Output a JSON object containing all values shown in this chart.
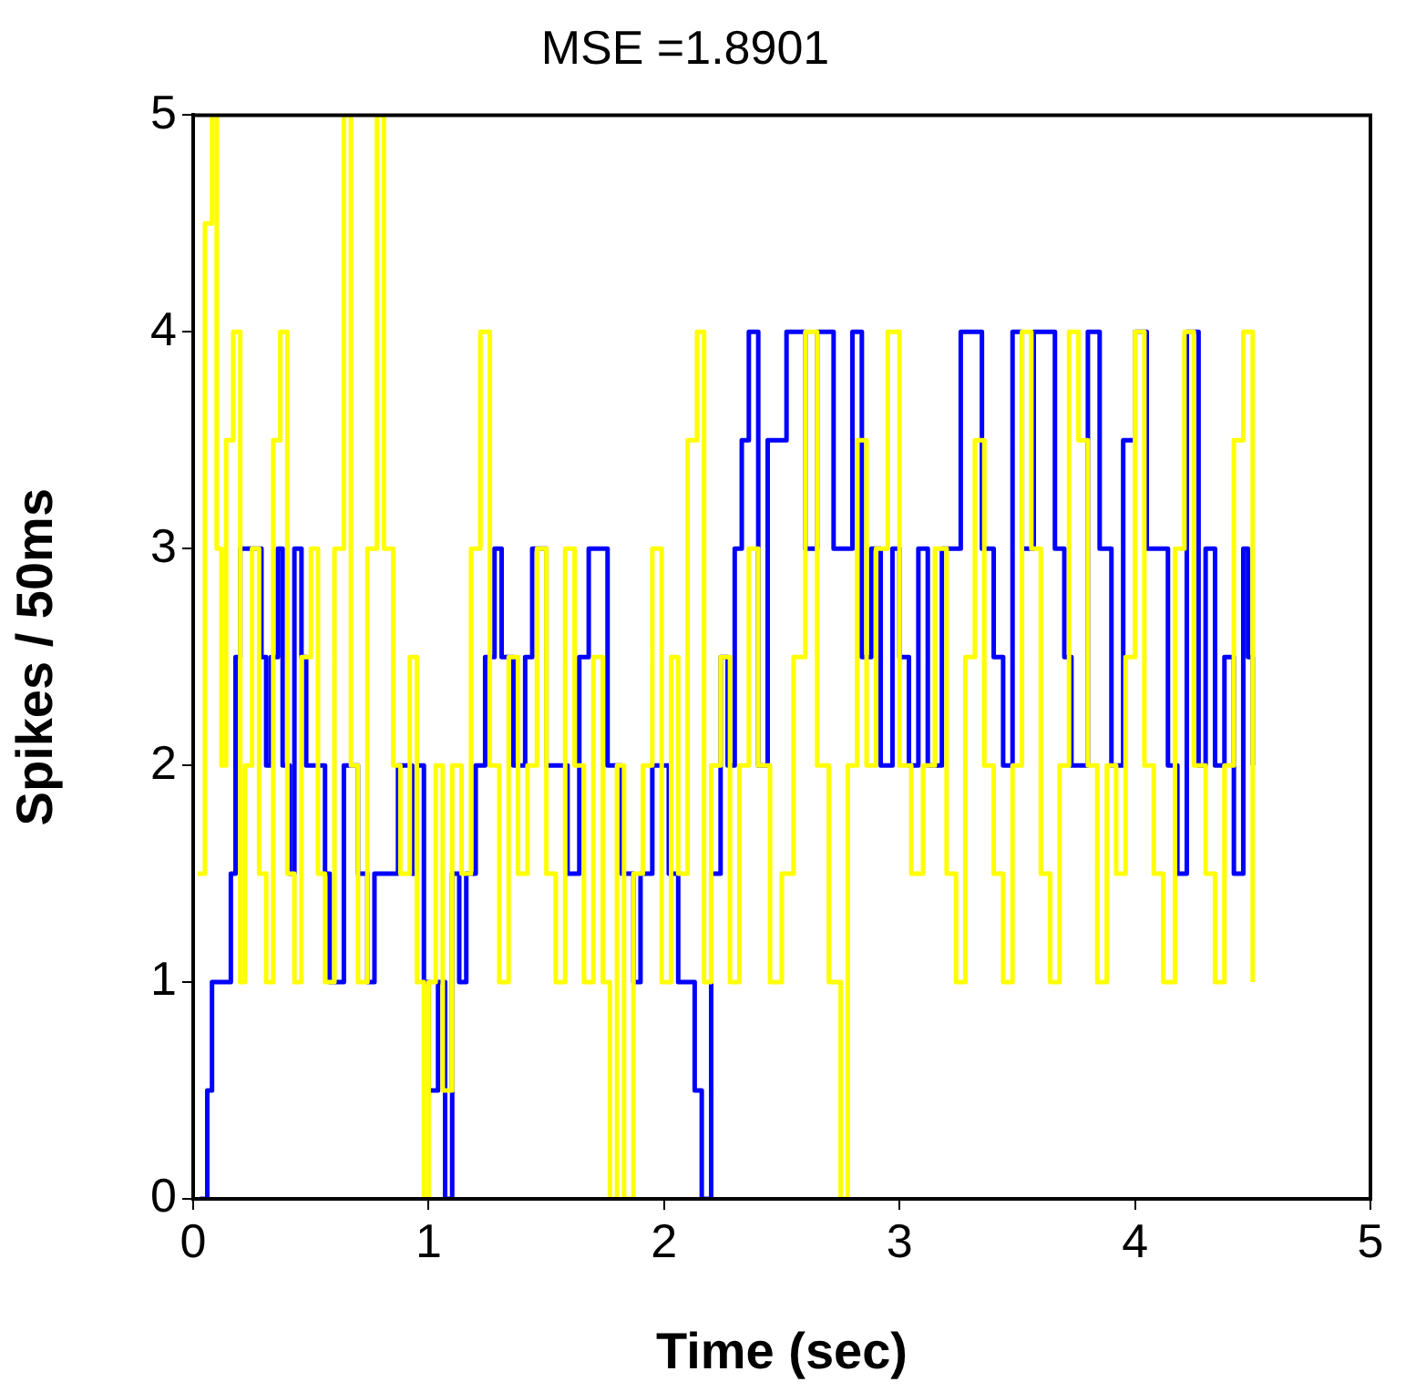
{
  "chart_data": {
    "type": "step",
    "title": "MSE =1.8901",
    "xlabel": "Time (sec)",
    "ylabel": "Spikes / 50ms",
    "xlim": [
      0,
      5
    ],
    "xticks": [
      0,
      1,
      2,
      3,
      4,
      5
    ],
    "ylim": [
      0,
      5
    ],
    "yticks": [
      0,
      1,
      2,
      3,
      4,
      5
    ],
    "grid": false,
    "legend": false,
    "series": [
      {
        "color": "#ffff00",
        "x": [
          0.02,
          0.05,
          0.08,
          0.1,
          0.12,
          0.14,
          0.17,
          0.2,
          0.22,
          0.25,
          0.28,
          0.31,
          0.34,
          0.37,
          0.4,
          0.43,
          0.46,
          0.5,
          0.53,
          0.56,
          0.6,
          0.64,
          0.67,
          0.7,
          0.74,
          0.78,
          0.81,
          0.85,
          0.88,
          0.92,
          0.95,
          0.98,
          1.0,
          1.03,
          1.06,
          1.1,
          1.14,
          1.18,
          1.22,
          1.26,
          1.3,
          1.34,
          1.38,
          1.42,
          1.46,
          1.5,
          1.54,
          1.58,
          1.62,
          1.66,
          1.7,
          1.74,
          1.77,
          1.8,
          1.83,
          1.87,
          1.91,
          1.95,
          1.99,
          2.03,
          2.06,
          2.1,
          2.14,
          2.17,
          2.2,
          2.24,
          2.28,
          2.32,
          2.36,
          2.4,
          2.45,
          2.5,
          2.55,
          2.6,
          2.65,
          2.7,
          2.75,
          2.78,
          2.82,
          2.86,
          2.9,
          2.95,
          3.0,
          3.05,
          3.1,
          3.15,
          3.2,
          3.24,
          3.28,
          3.32,
          3.36,
          3.4,
          3.44,
          3.48,
          3.52,
          3.56,
          3.6,
          3.64,
          3.68,
          3.72,
          3.76,
          3.8,
          3.84,
          3.88,
          3.92,
          3.96,
          4.0,
          4.04,
          4.08,
          4.12,
          4.17,
          4.21,
          4.25,
          4.3,
          4.34,
          4.38,
          4.42,
          4.46,
          4.5
        ],
        "values": [
          1.5,
          4.5,
          5,
          3,
          2,
          3.5,
          4,
          1,
          2,
          3,
          1.5,
          1,
          3.5,
          4,
          1.5,
          1,
          2.5,
          3,
          1.5,
          1,
          3,
          5,
          2,
          1,
          3,
          5,
          3,
          2,
          1.5,
          2.5,
          1,
          0,
          1,
          2,
          0.5,
          2,
          1.5,
          3,
          4,
          2,
          1,
          2.5,
          1.5,
          2,
          3,
          1.5,
          1,
          3,
          2,
          1,
          2.5,
          1,
          0,
          2,
          0,
          1.5,
          2,
          3,
          1,
          2.5,
          1.5,
          3.5,
          4,
          1,
          2,
          2.5,
          1,
          2,
          3,
          2,
          1,
          1.5,
          2.5,
          4,
          2,
          1,
          0,
          2,
          3.5,
          2,
          3,
          4,
          2,
          1.5,
          2,
          3,
          1.5,
          1,
          2.5,
          3.5,
          2,
          1.5,
          1,
          2,
          4,
          3,
          1.5,
          1,
          2,
          4,
          3.5,
          2,
          1,
          2,
          1.5,
          2.5,
          4,
          2,
          1.5,
          1,
          3,
          4,
          2,
          1.5,
          1,
          2,
          3.5,
          4,
          1
        ]
      },
      {
        "color": "#0000ff",
        "x": [
          0.03,
          0.06,
          0.08,
          0.14,
          0.16,
          0.18,
          0.2,
          0.27,
          0.29,
          0.31,
          0.33,
          0.36,
          0.38,
          0.41,
          0.43,
          0.46,
          0.48,
          0.53,
          0.56,
          0.58,
          0.64,
          0.67,
          0.7,
          0.74,
          0.77,
          0.87,
          0.9,
          0.93,
          0.95,
          0.98,
          1.0,
          1.04,
          1.07,
          1.1,
          1.13,
          1.16,
          1.2,
          1.24,
          1.28,
          1.31,
          1.36,
          1.41,
          1.44,
          1.5,
          1.55,
          1.59,
          1.64,
          1.68,
          1.71,
          1.76,
          1.79,
          1.82,
          1.87,
          1.9,
          1.95,
          1.98,
          2.02,
          2.06,
          2.1,
          2.13,
          2.16,
          2.2,
          2.24,
          2.27,
          2.3,
          2.33,
          2.36,
          2.4,
          2.44,
          2.52,
          2.56,
          2.6,
          2.65,
          2.72,
          2.76,
          2.8,
          2.84,
          2.88,
          2.92,
          2.97,
          3.0,
          3.04,
          3.08,
          3.12,
          3.18,
          3.26,
          3.3,
          3.35,
          3.4,
          3.44,
          3.48,
          3.52,
          3.57,
          3.62,
          3.66,
          3.7,
          3.73,
          3.8,
          3.85,
          3.9,
          3.95,
          4.0,
          4.05,
          4.1,
          4.14,
          4.18,
          4.22,
          4.27,
          4.3,
          4.34,
          4.38,
          4.42,
          4.46,
          4.48,
          4.5
        ],
        "values": [
          0,
          0.5,
          1,
          1,
          1.5,
          2.5,
          3,
          3,
          2.5,
          2,
          2.5,
          3,
          2,
          1.5,
          3,
          2.5,
          2,
          2,
          1.5,
          1,
          2,
          2,
          1.5,
          1,
          1.5,
          2,
          2,
          1.5,
          2,
          1,
          0.5,
          1,
          0,
          1.5,
          1,
          1.5,
          2,
          2.5,
          3,
          2.5,
          2,
          2.5,
          3,
          2,
          2,
          1.5,
          2.5,
          3,
          3,
          2,
          2,
          1.5,
          1,
          1.5,
          2,
          2,
          1.5,
          1,
          1,
          0.5,
          0,
          1.5,
          2.5,
          2,
          3,
          3.5,
          4,
          2,
          3.5,
          4,
          4,
          3,
          4,
          3,
          3,
          4,
          2.5,
          3,
          2,
          3,
          2.5,
          2,
          3,
          2,
          3,
          4,
          4,
          3,
          2.5,
          2,
          4,
          3,
          4,
          4,
          3,
          2.5,
          2,
          4,
          3,
          2,
          3.5,
          4,
          3,
          3,
          2,
          1.5,
          4,
          2,
          3,
          2,
          2.5,
          1.5,
          3,
          2.5,
          2
        ]
      }
    ]
  }
}
